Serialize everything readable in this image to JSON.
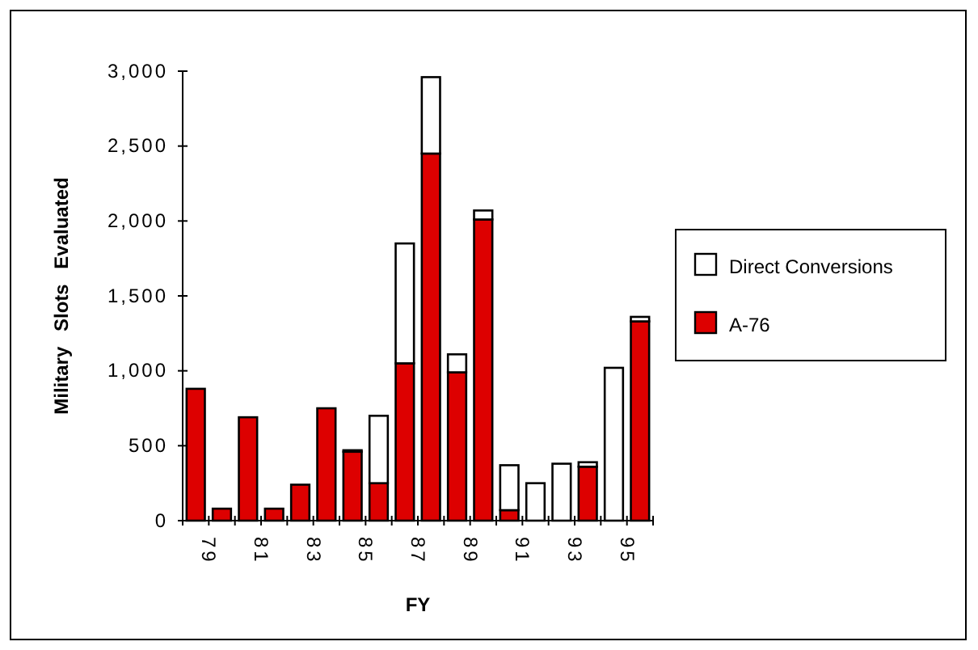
{
  "chart_data": {
    "type": "bar",
    "stacked": true,
    "xlabel": "FY",
    "ylabel": "Military Slots Evaluated",
    "categories": [
      "79",
      null,
      "81",
      null,
      "83",
      null,
      "85",
      null,
      "87",
      null,
      "89",
      null,
      "91",
      null,
      "93",
      null,
      "95",
      null
    ],
    "series": [
      {
        "name": "A-76",
        "color": "#dd0000",
        "values": [
          880,
          80,
          690,
          80,
          240,
          750,
          460,
          250,
          1050,
          2450,
          990,
          2010,
          70,
          0,
          0,
          360,
          0,
          1330
        ]
      },
      {
        "name": "Direct Conversions",
        "color": "#ffffff",
        "values": [
          0,
          0,
          0,
          0,
          0,
          0,
          10,
          450,
          800,
          510,
          120,
          60,
          300,
          250,
          380,
          30,
          1020,
          30
        ]
      }
    ],
    "ylim": [
      0,
      3000
    ],
    "yticks": [
      {
        "value": 0,
        "label": "0"
      },
      {
        "value": 500,
        "label": "500"
      },
      {
        "value": 1000,
        "label": "1,000"
      },
      {
        "value": 1500,
        "label": "1,500"
      },
      {
        "value": 2000,
        "label": "2,000"
      },
      {
        "value": 2500,
        "label": "2,500"
      },
      {
        "value": 3000,
        "label": "3,000"
      }
    ],
    "grid": false,
    "legend": "right"
  }
}
